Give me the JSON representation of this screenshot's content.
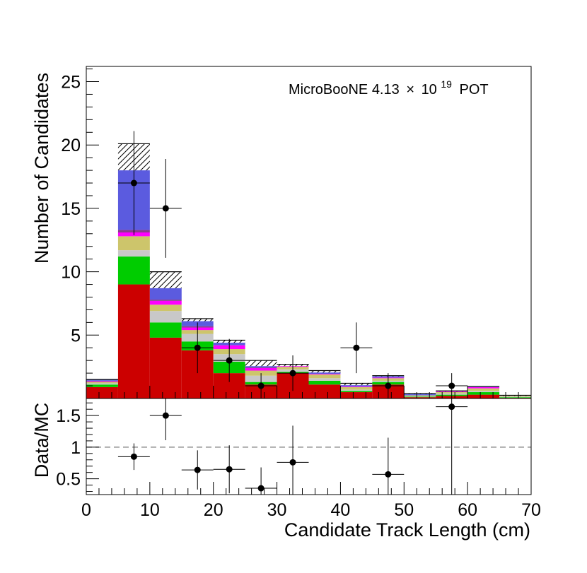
{
  "chart_data": [
    {
      "type": "bar",
      "stacked": true,
      "title": "",
      "annotation": {
        "prefix": "MicroBooNE 4.13",
        "times": "×",
        "base": "10",
        "exponent": "19",
        "suffix": "POT"
      },
      "xlabel": "",
      "ylabel": "Number of Candidates",
      "xlim": [
        0,
        70
      ],
      "ylim": [
        0,
        26.2
      ],
      "yticks": [
        5,
        10,
        15,
        20,
        25
      ],
      "bin_width": 5,
      "bin_centers": [
        2.5,
        7.5,
        12.5,
        17.5,
        22.5,
        27.5,
        32.5,
        37.5,
        42.5,
        47.5,
        52.5,
        57.5,
        62.5,
        67.5
      ],
      "stack": [
        {
          "name": "red",
          "color": "#cc0000",
          "values": [
            0.9,
            9.0,
            4.8,
            3.8,
            2.0,
            1.1,
            2.0,
            1.1,
            0.5,
            1.1,
            0.1,
            0.2,
            0.3,
            0.05
          ]
        },
        {
          "name": "green",
          "color": "#00cc00",
          "values": [
            0.2,
            2.2,
            1.2,
            0.7,
            0.9,
            0.2,
            0.1,
            0.3,
            0.1,
            0.2,
            0.05,
            0.1,
            0.2,
            0.05
          ]
        },
        {
          "name": "light grey",
          "color": "#c8c8c8",
          "values": [
            0.1,
            0.5,
            0.9,
            0.6,
            0.6,
            0.5,
            0.2,
            0.2,
            0.1,
            0.1,
            0.05,
            0.1,
            0.1,
            0.05
          ]
        },
        {
          "name": "khaki",
          "color": "#cdc56b",
          "values": [
            0.1,
            1.1,
            0.5,
            0.3,
            0.4,
            0.4,
            0.2,
            0.3,
            0.2,
            0.2,
            0.05,
            0.1,
            0.2,
            0.05
          ]
        },
        {
          "name": "magenta",
          "color": "#ff00ff",
          "values": [
            0.05,
            0.3,
            0.3,
            0.2,
            0.3,
            0.2,
            0.05,
            0.05,
            0.05,
            0.05,
            0.0,
            0.05,
            0.1,
            0.0
          ]
        },
        {
          "name": "purple",
          "color": "#8b3a8b",
          "values": [
            0.05,
            0.2,
            0.1,
            0.1,
            0.0,
            0.05,
            0.0,
            0.0,
            0.0,
            0.0,
            0.0,
            0.0,
            0.0,
            0.0
          ]
        },
        {
          "name": "blue",
          "color": "#5b5bdf",
          "values": [
            0.1,
            4.7,
            0.9,
            0.4,
            0.2,
            0.1,
            0.0,
            0.1,
            0.1,
            0.1,
            0.1,
            0.0,
            0.05,
            0.0
          ]
        }
      ],
      "uncertainty_top": [
        1.5,
        20.1,
        10.0,
        6.3,
        4.6,
        3.0,
        2.7,
        2.2,
        1.2,
        1.8,
        0.4,
        0.6,
        0.95,
        0.25
      ],
      "data_points": [
        {
          "x": 7.5,
          "y": 17,
          "yerr": 4.1
        },
        {
          "x": 12.5,
          "y": 15,
          "yerr": 3.9
        },
        {
          "x": 17.5,
          "y": 4,
          "yerr": 2.0
        },
        {
          "x": 22.5,
          "y": 3,
          "yerr": 1.7
        },
        {
          "x": 27.5,
          "y": 1,
          "yerr": 1.0
        },
        {
          "x": 32.5,
          "y": 2,
          "yerr": 1.4
        },
        {
          "x": 42.5,
          "y": 4,
          "yerr": 2.0
        },
        {
          "x": 47.5,
          "y": 1,
          "yerr": 1.0
        },
        {
          "x": 57.5,
          "y": 1,
          "yerr": 1.0
        }
      ]
    },
    {
      "type": "scatter",
      "title": "",
      "xlabel": "Candidate Track Length (cm)",
      "ylabel": "Data/MC",
      "xlim": [
        0,
        70
      ],
      "ylim": [
        0.25,
        1.77
      ],
      "yticks": [
        0.5,
        1,
        1.5
      ],
      "yticklabels": [
        "0.5",
        "1",
        "1.5"
      ],
      "xticks": [
        0,
        10,
        20,
        30,
        40,
        50,
        60,
        70
      ],
      "xticklabels": [
        "0",
        "10",
        "20",
        "30",
        "40",
        "50",
        "60",
        "70"
      ],
      "reference_line": 1,
      "points": [
        {
          "x": 7.5,
          "y": 0.85,
          "yerr_low": 0.21,
          "yerr_high": 0.21
        },
        {
          "x": 12.5,
          "y": 1.5,
          "yerr_low": 0.39,
          "yerr_high": 0.39
        },
        {
          "x": 17.5,
          "y": 0.64,
          "yerr_low": 0.31,
          "yerr_high": 0.31
        },
        {
          "x": 22.5,
          "y": 0.65,
          "yerr_low": 0.38,
          "yerr_high": 0.38
        },
        {
          "x": 27.5,
          "y": 0.35,
          "yerr_low": 0.35,
          "yerr_high": 0.33
        },
        {
          "x": 32.5,
          "y": 0.76,
          "yerr_low": 0.53,
          "yerr_high": 0.58
        },
        {
          "x": 47.5,
          "y": 0.57,
          "yerr_low": 0.57,
          "yerr_high": 0.58
        },
        {
          "x": 57.5,
          "y": 1.64,
          "yerr_low": 1.64,
          "yerr_high": 0.13
        }
      ]
    }
  ]
}
